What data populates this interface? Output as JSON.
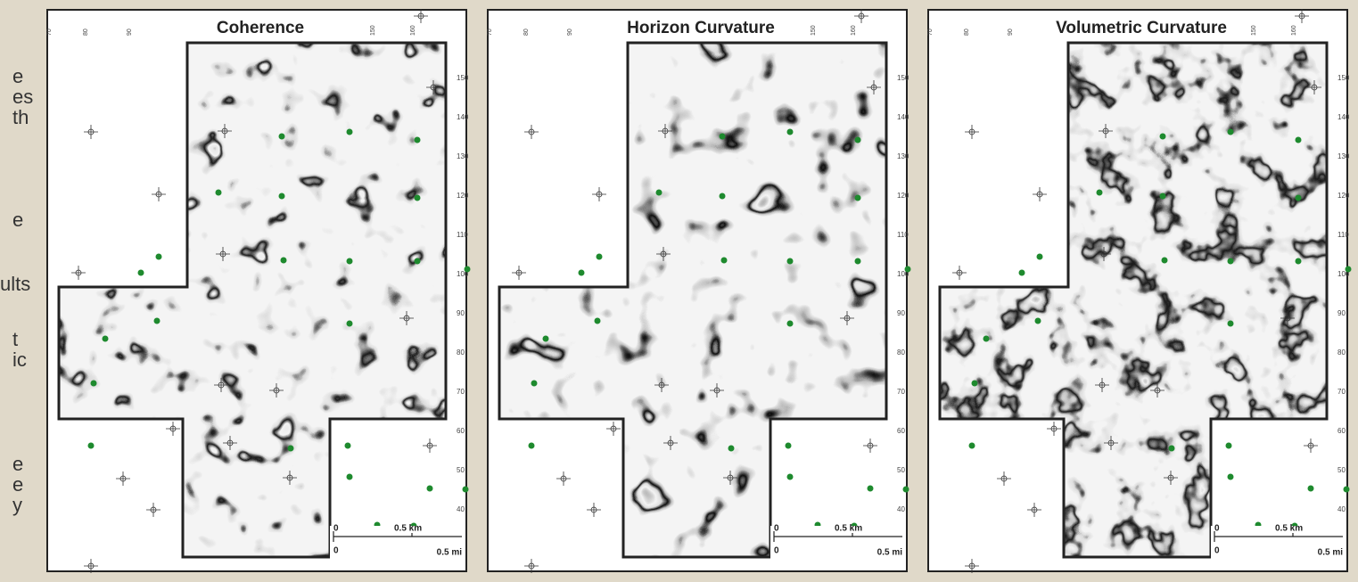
{
  "left_text": [
    "e",
    "es",
    "th",
    "e",
    "ults",
    "t",
    "ic",
    "e",
    "e",
    "y"
  ],
  "panels": [
    {
      "title": "Coherence"
    },
    {
      "title": "Horizon Curvature"
    },
    {
      "title": "Volumetric Curvature"
    }
  ],
  "top_labels": [
    "70",
    "80",
    "90",
    "150",
    "160"
  ],
  "right_labels": [
    "150",
    "140",
    "130",
    "120",
    "110",
    "100",
    "90",
    "80",
    "70",
    "60",
    "50",
    "40"
  ],
  "scale_bar": {
    "origin": "0",
    "km": "0.5 km",
    "mi": "0.5 mi"
  }
}
